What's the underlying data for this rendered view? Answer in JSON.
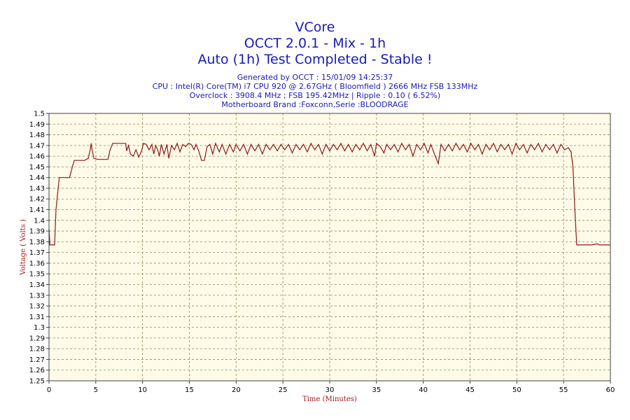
{
  "chart_data": {
    "type": "line",
    "title": "VCore",
    "subtitle": "OCCT 2.0.1 - Mix - 1h",
    "status": "Auto (1h) Test Completed - Stable !",
    "info": [
      "Generated by OCCT : 15/01/09 14:25:37",
      "CPU : Intel(R) Core(TM) i7 CPU 920 @ 2.67GHz ( Bloomfield ) 2666 MHz FSB 133MHz",
      "Overclock : 3908.4 MHz ; FSB 195.42MHz | Ripple : 0.10 ( 6.52%)",
      "Motherboard Brand :Foxconn,Serie :BLOODRAGE"
    ],
    "xlabel": "Time (Minutes)",
    "ylabel": "Voltage ( Volts )",
    "xlim": [
      0,
      60
    ],
    "ylim": [
      1.25,
      1.5
    ],
    "xticks": [
      "0",
      "5",
      "10",
      "15",
      "20",
      "25",
      "30",
      "35",
      "40",
      "45",
      "50",
      "55",
      "60"
    ],
    "yticks": [
      "1.5",
      "1.49",
      "1.48",
      "1.47",
      "1.46",
      "1.45",
      "1.44",
      "1.43",
      "1.42",
      "1.41",
      "1.4",
      "1.39",
      "1.38",
      "1.37",
      "1.36",
      "1.35",
      "1.34",
      "1.33",
      "1.32",
      "1.31",
      "1.3",
      "1.29",
      "1.28",
      "1.27",
      "1.26",
      "1.25"
    ],
    "grid": true,
    "colors": {
      "line": "#8b1a1a",
      "plot_bg": "#fffbe8",
      "title": "#1a1ab4",
      "tick_text": "#000000",
      "axis_label": "#a01818",
      "grid": "#8b8b5a"
    },
    "series": [
      {
        "values": [
          [
            0.0,
            1.392
          ],
          [
            0.1,
            1.377
          ],
          [
            0.6,
            1.377
          ],
          [
            0.75,
            1.41
          ],
          [
            1.1,
            1.44
          ],
          [
            1.5,
            1.44
          ],
          [
            2.2,
            1.44
          ],
          [
            2.5,
            1.45
          ],
          [
            2.7,
            1.456
          ],
          [
            3.2,
            1.456
          ],
          [
            3.8,
            1.456
          ],
          [
            4.2,
            1.458
          ],
          [
            4.4,
            1.466
          ],
          [
            4.5,
            1.472
          ],
          [
            4.6,
            1.466
          ],
          [
            4.8,
            1.458
          ],
          [
            5.2,
            1.457
          ],
          [
            5.8,
            1.457
          ],
          [
            6.3,
            1.457
          ],
          [
            6.5,
            1.465
          ],
          [
            6.8,
            1.472
          ],
          [
            7.4,
            1.472
          ],
          [
            8.2,
            1.472
          ],
          [
            8.3,
            1.465
          ],
          [
            8.5,
            1.47
          ],
          [
            8.7,
            1.462
          ],
          [
            9.0,
            1.46
          ],
          [
            9.3,
            1.466
          ],
          [
            9.6,
            1.459
          ],
          [
            9.9,
            1.465
          ],
          [
            10.1,
            1.472
          ],
          [
            10.4,
            1.471
          ],
          [
            10.7,
            1.466
          ],
          [
            11.0,
            1.471
          ],
          [
            11.2,
            1.462
          ],
          [
            11.4,
            1.47
          ],
          [
            11.6,
            1.466
          ],
          [
            11.8,
            1.46
          ],
          [
            12.0,
            1.471
          ],
          [
            12.3,
            1.462
          ],
          [
            12.6,
            1.471
          ],
          [
            12.8,
            1.458
          ],
          [
            13.1,
            1.47
          ],
          [
            13.4,
            1.466
          ],
          [
            13.7,
            1.472
          ],
          [
            14.0,
            1.464
          ],
          [
            14.3,
            1.471
          ],
          [
            14.6,
            1.469
          ],
          [
            14.9,
            1.472
          ],
          [
            15.2,
            1.471
          ],
          [
            15.5,
            1.466
          ],
          [
            15.7,
            1.471
          ],
          [
            16.0,
            1.465
          ],
          [
            16.3,
            1.456
          ],
          [
            16.6,
            1.456
          ],
          [
            16.9,
            1.469
          ],
          [
            17.2,
            1.471
          ],
          [
            17.5,
            1.462
          ],
          [
            17.8,
            1.472
          ],
          [
            18.2,
            1.464
          ],
          [
            18.5,
            1.471
          ],
          [
            18.9,
            1.462
          ],
          [
            19.3,
            1.471
          ],
          [
            19.7,
            1.464
          ],
          [
            20.0,
            1.471
          ],
          [
            20.4,
            1.465
          ],
          [
            20.8,
            1.471
          ],
          [
            21.2,
            1.462
          ],
          [
            21.6,
            1.471
          ],
          [
            22.0,
            1.465
          ],
          [
            22.4,
            1.471
          ],
          [
            22.8,
            1.462
          ],
          [
            23.2,
            1.471
          ],
          [
            23.6,
            1.466
          ],
          [
            24.0,
            1.471
          ],
          [
            24.4,
            1.465
          ],
          [
            24.8,
            1.471
          ],
          [
            25.2,
            1.466
          ],
          [
            25.6,
            1.471
          ],
          [
            26.0,
            1.463
          ],
          [
            26.4,
            1.471
          ],
          [
            26.8,
            1.466
          ],
          [
            27.2,
            1.471
          ],
          [
            27.6,
            1.464
          ],
          [
            28.0,
            1.472
          ],
          [
            28.4,
            1.466
          ],
          [
            28.8,
            1.471
          ],
          [
            29.2,
            1.462
          ],
          [
            29.6,
            1.471
          ],
          [
            30.0,
            1.465
          ],
          [
            30.4,
            1.471
          ],
          [
            30.8,
            1.466
          ],
          [
            31.2,
            1.472
          ],
          [
            31.6,
            1.465
          ],
          [
            32.0,
            1.471
          ],
          [
            32.4,
            1.464
          ],
          [
            32.8,
            1.471
          ],
          [
            33.2,
            1.466
          ],
          [
            33.6,
            1.472
          ],
          [
            34.0,
            1.465
          ],
          [
            34.4,
            1.471
          ],
          [
            34.8,
            1.46
          ],
          [
            35.0,
            1.472
          ],
          [
            35.4,
            1.469
          ],
          [
            35.8,
            1.463
          ],
          [
            36.1,
            1.471
          ],
          [
            36.5,
            1.466
          ],
          [
            36.9,
            1.471
          ],
          [
            37.3,
            1.464
          ],
          [
            37.7,
            1.472
          ],
          [
            38.1,
            1.466
          ],
          [
            38.5,
            1.471
          ],
          [
            38.9,
            1.46
          ],
          [
            39.3,
            1.471
          ],
          [
            39.7,
            1.466
          ],
          [
            40.1,
            1.472
          ],
          [
            40.5,
            1.463
          ],
          [
            40.8,
            1.471
          ],
          [
            41.2,
            1.462
          ],
          [
            41.6,
            1.453
          ],
          [
            41.9,
            1.471
          ],
          [
            42.3,
            1.465
          ],
          [
            42.7,
            1.471
          ],
          [
            43.1,
            1.465
          ],
          [
            43.5,
            1.472
          ],
          [
            43.9,
            1.466
          ],
          [
            44.3,
            1.471
          ],
          [
            44.7,
            1.464
          ],
          [
            45.1,
            1.472
          ],
          [
            45.5,
            1.466
          ],
          [
            45.9,
            1.471
          ],
          [
            46.3,
            1.462
          ],
          [
            46.7,
            1.471
          ],
          [
            47.1,
            1.466
          ],
          [
            47.5,
            1.472
          ],
          [
            47.9,
            1.464
          ],
          [
            48.3,
            1.471
          ],
          [
            48.7,
            1.466
          ],
          [
            49.1,
            1.471
          ],
          [
            49.5,
            1.462
          ],
          [
            49.9,
            1.472
          ],
          [
            50.3,
            1.466
          ],
          [
            50.7,
            1.471
          ],
          [
            51.1,
            1.463
          ],
          [
            51.5,
            1.471
          ],
          [
            51.9,
            1.466
          ],
          [
            52.3,
            1.472
          ],
          [
            52.7,
            1.464
          ],
          [
            53.1,
            1.471
          ],
          [
            53.5,
            1.466
          ],
          [
            53.9,
            1.471
          ],
          [
            54.3,
            1.463
          ],
          [
            54.7,
            1.471
          ],
          [
            55.1,
            1.466
          ],
          [
            55.5,
            1.468
          ],
          [
            55.8,
            1.464
          ],
          [
            56.0,
            1.45
          ],
          [
            56.2,
            1.41
          ],
          [
            56.4,
            1.377
          ],
          [
            57.0,
            1.377
          ],
          [
            58.0,
            1.377
          ],
          [
            58.6,
            1.378
          ],
          [
            58.8,
            1.377
          ],
          [
            60.0,
            1.377
          ]
        ]
      }
    ]
  }
}
